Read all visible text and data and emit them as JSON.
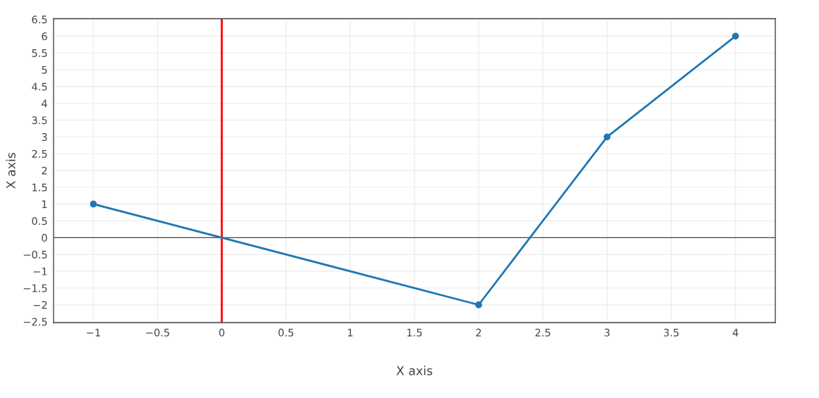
{
  "chart_data": {
    "type": "line",
    "xlabel": "X axis",
    "ylabel": "X axis",
    "x": [
      -1,
      2,
      3,
      4
    ],
    "series": [
      {
        "color": "#1f77b4",
        "values": [
          1,
          -2,
          3,
          6
        ]
      }
    ],
    "xlim": [
      -1.31,
      4.31
    ],
    "xticks": [
      -1,
      -0.5,
      0,
      0.5,
      1,
      1.5,
      2,
      2.5,
      3,
      3.5,
      4
    ],
    "ylim": [
      -2.53,
      6.52
    ],
    "yticks": [
      -2.5,
      -2,
      -1.5,
      -1,
      -0.5,
      0,
      0.5,
      1,
      1.5,
      2,
      2.5,
      3,
      3.5,
      4,
      4.5,
      5,
      5.5,
      6,
      6.5
    ],
    "ref_lines": [
      {
        "axis": "x",
        "value": 0,
        "color": "#ff0000"
      },
      {
        "axis": "y",
        "value": 0,
        "color": "#444444"
      }
    ],
    "grid": true,
    "marker": "circle",
    "line_style": "solid",
    "legend": false
  }
}
